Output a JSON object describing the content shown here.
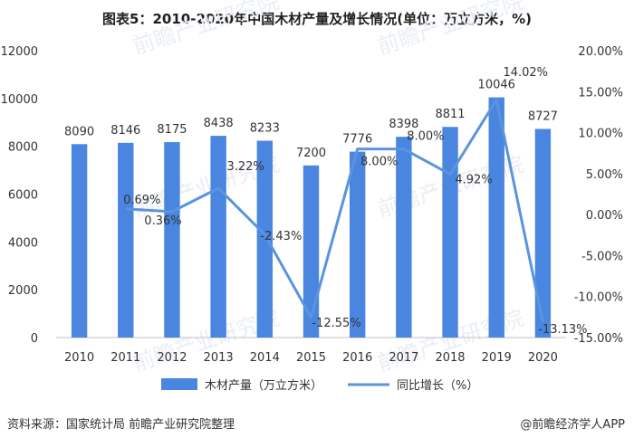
{
  "title": "图表5：2010-2020年中国木材产量及增长情况(单位：万立方米，%)",
  "footer": {
    "source": "资料来源：国家统计局 前瞻产业研究院整理",
    "brand": "@前瞻经济学人APP"
  },
  "watermark": "前瞻产业研究院",
  "colors": {
    "bar": "#4a86e0",
    "line": "#5a94de",
    "axis": "#bfbfbf",
    "text": "#333333"
  },
  "chart_data": {
    "type": "bar+line",
    "categories": [
      "2010",
      "2011",
      "2012",
      "2013",
      "2014",
      "2015",
      "2016",
      "2017",
      "2018",
      "2019",
      "2020"
    ],
    "series": [
      {
        "name": "木材产量（万立方米）",
        "type": "bar",
        "axis": "left",
        "values": [
          8090,
          8146,
          8175,
          8438,
          8233,
          7200,
          7776,
          8398,
          8811,
          10046,
          8727
        ],
        "labels": [
          "8090",
          "8146",
          "8175",
          "8438",
          "8233",
          "7200",
          "7776",
          "8398",
          "8811",
          "10046",
          "8727"
        ]
      },
      {
        "name": "同比增长（%）",
        "type": "line",
        "axis": "right",
        "values": [
          null,
          0.69,
          0.36,
          3.22,
          -2.43,
          -12.55,
          8.0,
          8.0,
          4.92,
          14.02,
          -13.13
        ],
        "labels": [
          null,
          "0.69%",
          "0.36%",
          "3.22%",
          "-2.43%",
          "-12.55%",
          "8.00%",
          "8.00%",
          "4.92%",
          "14.02%",
          "-13.13%"
        ]
      }
    ],
    "left_axis": {
      "min": 0,
      "max": 12000,
      "ticks": [
        "0",
        "2000",
        "4000",
        "6000",
        "8000",
        "10000",
        "12000"
      ]
    },
    "right_axis": {
      "min": -15,
      "max": 20,
      "ticks": [
        "-15.00%",
        "-10.00%",
        "-5.00%",
        "0.00%",
        "5.00%",
        "10.00%",
        "15.00%",
        "20.00%"
      ]
    }
  }
}
